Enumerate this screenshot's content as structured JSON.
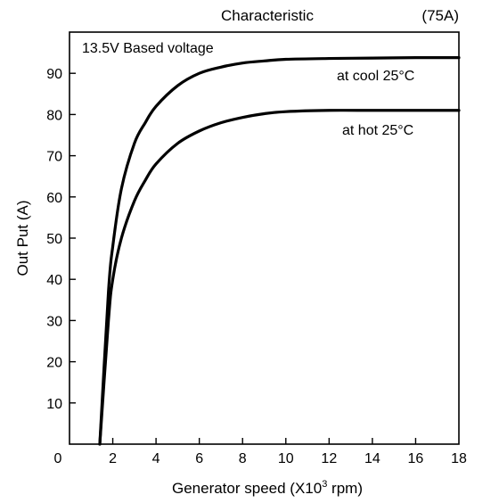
{
  "chart_data": {
    "type": "line",
    "title": "Characteristic",
    "subtitle": "(75A)",
    "note": "13.5V Based voltage",
    "xlabel": "Generator speed (X10",
    "xlabel_sup": "3",
    "xlabel_end": " rpm)",
    "ylabel": "Out Put (A)",
    "x_ticks": [
      "0",
      "2",
      "4",
      "6",
      "8",
      "10",
      "12",
      "14",
      "16",
      "18"
    ],
    "y_ticks": [
      "10",
      "20",
      "30",
      "40",
      "50",
      "60",
      "70",
      "80",
      "90"
    ],
    "xlim": [
      0,
      18
    ],
    "ylim": [
      0,
      100
    ],
    "grid": false,
    "line_color": "#000000",
    "series": [
      {
        "name": "at cool 25°C",
        "x": [
          1.4,
          1.8,
          2.0,
          2.4,
          3.0,
          3.5,
          4.0,
          5.0,
          6.0,
          7.0,
          8.0,
          9.0,
          10.0,
          12.0,
          14.0,
          16.0,
          18.0
        ],
        "y": [
          0,
          37,
          48,
          62,
          73,
          78,
          82,
          87,
          90,
          91.5,
          92.5,
          93,
          93.4,
          93.6,
          93.7,
          93.8,
          93.8
        ]
      },
      {
        "name": "at hot 25°C",
        "x": [
          1.4,
          1.8,
          2.0,
          2.4,
          3.0,
          3.5,
          4.0,
          5.0,
          6.0,
          7.0,
          8.0,
          9.0,
          10.0,
          12.0,
          14.0,
          16.0,
          18.0
        ],
        "y": [
          0,
          30,
          40,
          50,
          59,
          64,
          68,
          73,
          76,
          78,
          79.3,
          80.2,
          80.7,
          81,
          81,
          81,
          81
        ]
      }
    ]
  }
}
